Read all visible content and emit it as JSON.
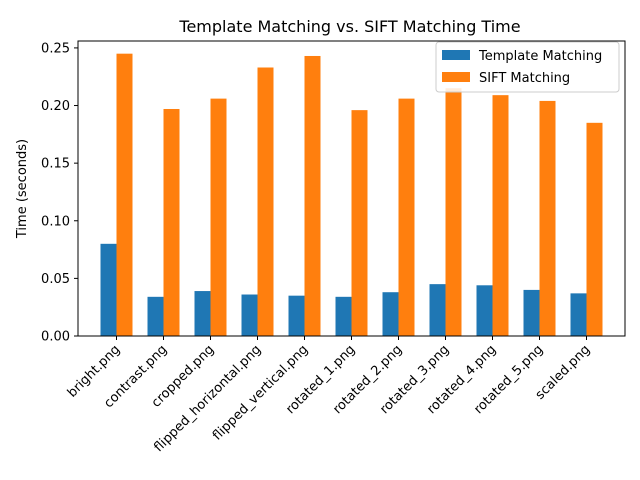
{
  "chart_data": {
    "type": "bar",
    "title": "Template Matching vs. SIFT Matching Time",
    "xlabel": "",
    "ylabel": "Time (seconds)",
    "ylim": [
      0,
      0.256
    ],
    "yticks": [
      "0.00",
      "0.05",
      "0.10",
      "0.15",
      "0.20",
      "0.25"
    ],
    "legend_position": "top-right",
    "categories": [
      "bright.png",
      "contrast.png",
      "cropped.png",
      "flipped_horizontal.png",
      "flipped_vertical.png",
      "rotated_1.png",
      "rotated_2.png",
      "rotated_3.png",
      "rotated_4.png",
      "rotated_5.png",
      "scaled.png"
    ],
    "series": [
      {
        "name": "Template Matching",
        "color": "#1f77b4",
        "values": [
          0.08,
          0.034,
          0.039,
          0.036,
          0.035,
          0.034,
          0.038,
          0.045,
          0.044,
          0.04,
          0.037
        ]
      },
      {
        "name": "SIFT Matching",
        "color": "#ff7f0e",
        "values": [
          0.245,
          0.197,
          0.206,
          0.233,
          0.243,
          0.196,
          0.206,
          0.215,
          0.209,
          0.204,
          0.185
        ]
      }
    ]
  }
}
